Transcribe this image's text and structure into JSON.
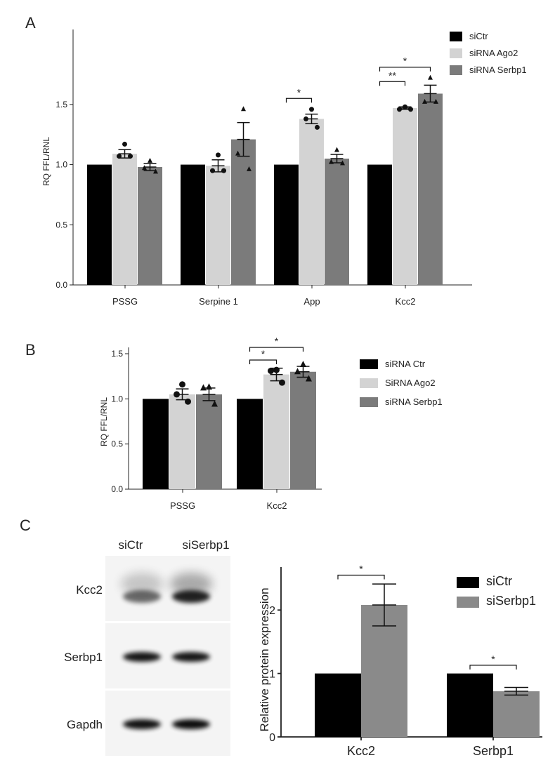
{
  "chart_data": [
    {
      "panel": "A",
      "type": "bar",
      "title": "",
      "xlabel": "",
      "ylabel": "RQ FFL/RNL",
      "ylim": [
        0,
        1.75
      ],
      "yticks": [
        "0.0",
        "0.5",
        "1.0",
        "1.5"
      ],
      "categories": [
        "PSSG",
        "Serpine 1",
        "App",
        "Kcc2"
      ],
      "legend_position": "top-right",
      "series": [
        {
          "name": "siCtr",
          "color": "#000000",
          "marker": "none",
          "values": [
            1.0,
            1.0,
            1.0,
            1.0
          ],
          "err": [
            0,
            0,
            0,
            0
          ],
          "points": [
            [],
            [],
            [],
            []
          ]
        },
        {
          "name": "siRNA Ago2",
          "color": "#d3d3d3",
          "marker": "circle",
          "values": [
            1.09,
            0.99,
            1.38,
            1.47
          ],
          "err": [
            0.035,
            0.05,
            0.04,
            0.01
          ],
          "points": [
            [
              1.17,
              1.07,
              1.07
            ],
            [
              1.08,
              0.95,
              0.95
            ],
            [
              1.46,
              1.38,
              1.31
            ],
            [
              1.48,
              1.46,
              1.46
            ]
          ]
        },
        {
          "name": "siRNA Serbp1",
          "color": "#7b7b7b",
          "marker": "triangle",
          "values": [
            0.98,
            1.21,
            1.05,
            1.59
          ],
          "err": [
            0.03,
            0.14,
            0.035,
            0.07
          ],
          "points": [
            [
              1.03,
              0.97,
              0.94
            ],
            [
              1.46,
              1.09,
              0.96
            ],
            [
              1.12,
              1.02,
              1.01
            ],
            [
              1.72,
              1.52,
              1.52
            ]
          ]
        }
      ],
      "significance": [
        {
          "label": "*",
          "category": 2,
          "from_series": 0,
          "to_series": 1,
          "y": 1.55
        },
        {
          "label": "**",
          "category": 3,
          "from_series": 0,
          "to_series": 1,
          "y": 1.69
        },
        {
          "label": "*",
          "category": 3,
          "from_series": 0,
          "to_series": 2,
          "y": 1.81
        }
      ]
    },
    {
      "panel": "B",
      "type": "bar",
      "title": "",
      "xlabel": "",
      "ylabel": "RQ FFL/RNL",
      "ylim": [
        0,
        1.5
      ],
      "yticks": [
        "0.0",
        "0.5",
        "1.0",
        "1.5"
      ],
      "categories": [
        "PSSG",
        "Kcc2"
      ],
      "legend_position": "right",
      "series": [
        {
          "name": "siRNA Ctr",
          "color": "#000000",
          "marker": "none",
          "values": [
            1.0,
            1.0
          ],
          "err": [
            0,
            0
          ],
          "points": [
            [],
            []
          ]
        },
        {
          "name": "SiRNA Ago2",
          "color": "#d3d3d3",
          "marker": "circle",
          "values": [
            1.05,
            1.27
          ],
          "err": [
            0.06,
            0.07
          ],
          "points": [
            [
              1.16,
              1.05,
              0.97
            ],
            [
              1.32,
              1.31,
              1.18
            ]
          ]
        },
        {
          "name": "siRNA Serbp1",
          "color": "#7b7b7b",
          "marker": "triangle",
          "values": [
            1.05,
            1.3
          ],
          "err": [
            0.07,
            0.06
          ],
          "points": [
            [
              1.13,
              1.12,
              0.94
            ],
            [
              1.38,
              1.3,
              1.22
            ]
          ]
        }
      ],
      "significance": [
        {
          "label": "*",
          "category": 1,
          "from_series": 0,
          "to_series": 1,
          "y": 1.43
        },
        {
          "label": "*",
          "category": 1,
          "from_series": 0,
          "to_series": 2,
          "y": 1.57
        }
      ]
    },
    {
      "panel": "C",
      "type": "bar",
      "title": "",
      "xlabel": "",
      "ylabel": "Relative protein expression",
      "ylim": [
        0,
        2.6
      ],
      "yticks": [
        "0",
        "1",
        "2"
      ],
      "categories": [
        "Kcc2",
        "Serbp1"
      ],
      "legend_position": "top-right",
      "series": [
        {
          "name": "siCtr",
          "color": "#000000",
          "values": [
            1.0,
            1.0
          ],
          "err": [
            0,
            0
          ]
        },
        {
          "name": "siSerbp1",
          "color": "#8a8a8a",
          "values": [
            2.08,
            0.72
          ],
          "err": [
            0.33,
            0.06
          ]
        }
      ],
      "significance": [
        {
          "label": "*",
          "category": 0,
          "from_series": 0,
          "to_series": 1,
          "y": 2.55
        },
        {
          "label": "*",
          "category": 1,
          "from_series": 0,
          "to_series": 1,
          "y": 1.13
        }
      ]
    }
  ],
  "blot": {
    "panel_label": "C",
    "columns": [
      "siCtr",
      "siSerbp1"
    ],
    "rows": [
      {
        "label": "Kcc2",
        "intensity": [
          0.55,
          0.85
        ]
      },
      {
        "label": "Serbp1",
        "intensity": [
          0.9,
          0.9
        ]
      },
      {
        "label": "Gapdh",
        "intensity": [
          0.92,
          0.95
        ]
      }
    ]
  }
}
